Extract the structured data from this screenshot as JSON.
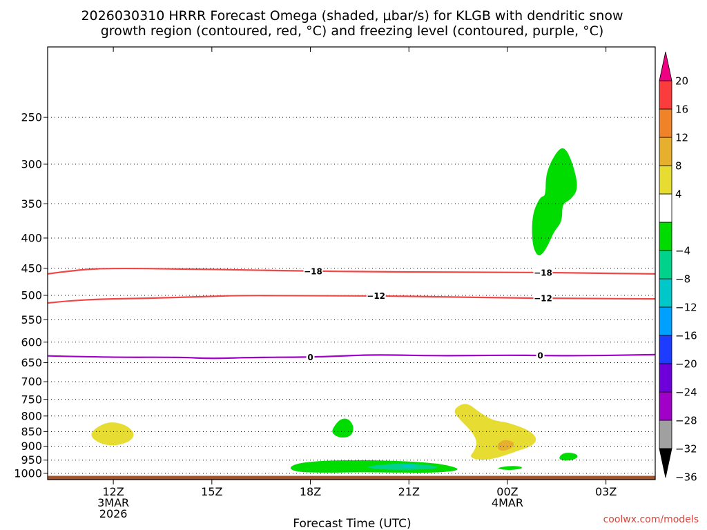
{
  "chart_data": {
    "type": "heatmap",
    "title": [
      "2026030310 HRRR Forecast Omega (shaded, μbar/s) for KLGB with dendritic snow",
      "growth region (contoured, red, °C) and freezing level (contoured, purple, °C)"
    ],
    "xlabel": "Forecast Time (UTC)",
    "ylabel": "",
    "credit": "coolwx.com/models",
    "x_range": [
      "2026-03-03T10:00Z",
      "2026-03-04T04:30Z"
    ],
    "x_ticks": [
      {
        "time": "2026-03-03T12:00Z",
        "lines": [
          "12Z",
          "3MAR",
          "2026"
        ]
      },
      {
        "time": "2026-03-03T15:00Z",
        "lines": [
          "15Z"
        ]
      },
      {
        "time": "2026-03-03T18:00Z",
        "lines": [
          "18Z"
        ]
      },
      {
        "time": "2026-03-03T21:00Z",
        "lines": [
          "21Z"
        ]
      },
      {
        "time": "2026-03-04T00:00Z",
        "lines": [
          "00Z",
          "4MAR"
        ]
      },
      {
        "time": "2026-03-04T03:00Z",
        "lines": [
          "03Z"
        ]
      }
    ],
    "y_axis": {
      "units": "hPa",
      "scale": "log-pressure",
      "range": [
        1025,
        190
      ],
      "ticks": [
        250,
        300,
        350,
        400,
        450,
        500,
        550,
        600,
        650,
        700,
        750,
        800,
        850,
        900,
        950,
        1000
      ]
    },
    "colorbar": {
      "ticks": [
        "20",
        "16",
        "12",
        "8",
        "4",
        "−4",
        "−8",
        "−12",
        "−16",
        "−20",
        "−24",
        "−28",
        "−32",
        "−36"
      ],
      "bins": [
        {
          "range": "<-36",
          "color": "#000000"
        },
        {
          "range": "-36 to -32",
          "color": "#a0a0a0"
        },
        {
          "range": "-32 to -28",
          "color": "#a000c8"
        },
        {
          "range": "-28 to -24",
          "color": "#6e00dc"
        },
        {
          "range": "-24 to -20",
          "color": "#1e3cff"
        },
        {
          "range": "-20 to -16",
          "color": "#00a0ff"
        },
        {
          "range": "-16 to -12",
          "color": "#00c8c8"
        },
        {
          "range": "-12 to -8",
          "color": "#00d28c"
        },
        {
          "range": "-8 to -4",
          "color": "#00dc00"
        },
        {
          "range": "-4 to 4",
          "color": "#ffffff"
        },
        {
          "range": "4 to 8",
          "color": "#e6dc32"
        },
        {
          "range": "8 to 12",
          "color": "#e6af2d"
        },
        {
          "range": "12 to 16",
          "color": "#f08228"
        },
        {
          "range": "16 to 20",
          "color": "#fa3c3c"
        },
        {
          "range": ">20",
          "color": "#f00082"
        }
      ]
    },
    "omega_regions": [
      {
        "value_range": "-8 to -4",
        "color": "#00dc00",
        "points": [
          [
            "2026-03-04T00:55Z",
            430
          ],
          [
            "2026-03-04T00:45Z",
            410
          ],
          [
            "2026-03-04T00:45Z",
            365
          ],
          [
            "2026-03-04T01:00Z",
            340
          ],
          [
            "2026-03-04T01:10Z",
            340
          ],
          [
            "2026-03-04T01:10Z",
            310
          ],
          [
            "2026-03-04T01:30Z",
            285
          ],
          [
            "2026-03-04T01:45Z",
            280
          ],
          [
            "2026-03-04T02:00Z",
            300
          ],
          [
            "2026-03-04T02:10Z",
            330
          ],
          [
            "2026-03-04T01:55Z",
            345
          ],
          [
            "2026-03-04T01:40Z",
            350
          ],
          [
            "2026-03-04T01:40Z",
            375
          ],
          [
            "2026-03-04T01:25Z",
            390
          ],
          [
            "2026-03-04T01:15Z",
            410
          ],
          [
            "2026-03-04T01:05Z",
            425
          ]
        ]
      },
      {
        "value_range": "4 to 8",
        "color": "#e6dc32",
        "points": [
          [
            "2026-03-03T11:20Z",
            850
          ],
          [
            "2026-03-03T11:40Z",
            825
          ],
          [
            "2026-03-03T12:00Z",
            818
          ],
          [
            "2026-03-03T12:25Z",
            830
          ],
          [
            "2026-03-03T12:40Z",
            858
          ],
          [
            "2026-03-03T12:30Z",
            885
          ],
          [
            "2026-03-03T12:00Z",
            900
          ],
          [
            "2026-03-03T11:35Z",
            890
          ],
          [
            "2026-03-03T11:20Z",
            870
          ]
        ]
      },
      {
        "value_range": "-8 to -4",
        "color": "#00dc00",
        "points": [
          [
            "2026-03-03T18:40Z",
            840
          ],
          [
            "2026-03-03T18:55Z",
            808
          ],
          [
            "2026-03-03T19:10Z",
            808
          ],
          [
            "2026-03-03T19:20Z",
            835
          ],
          [
            "2026-03-03T19:15Z",
            866
          ],
          [
            "2026-03-03T18:55Z",
            872
          ],
          [
            "2026-03-03T18:40Z",
            858
          ]
        ]
      },
      {
        "value_range": "4 to 8",
        "color": "#e6dc32",
        "points": [
          [
            "2026-03-03T22:20Z",
            785
          ],
          [
            "2026-03-03T22:35Z",
            763
          ],
          [
            "2026-03-03T22:50Z",
            763
          ],
          [
            "2026-03-03T23:10Z",
            790
          ],
          [
            "2026-03-03T23:35Z",
            815
          ],
          [
            "2026-03-04T00:00Z",
            820
          ],
          [
            "2026-03-04T00:40Z",
            845
          ],
          [
            "2026-03-04T00:55Z",
            875
          ],
          [
            "2026-03-04T00:45Z",
            900
          ],
          [
            "2026-03-04T00:20Z",
            915
          ],
          [
            "2026-03-04T00:00Z",
            930
          ],
          [
            "2026-03-03T23:35Z",
            945
          ],
          [
            "2026-03-03T23:10Z",
            950
          ],
          [
            "2026-03-03T22:50Z",
            940
          ],
          [
            "2026-03-03T23:00Z",
            915
          ],
          [
            "2026-03-03T23:05Z",
            885
          ],
          [
            "2026-03-03T22:55Z",
            850
          ],
          [
            "2026-03-03T22:35Z",
            815
          ]
        ]
      },
      {
        "value_range": "8 to 12",
        "color": "#e6af2d",
        "points": [
          [
            "2026-03-03T23:40Z",
            895
          ],
          [
            "2026-03-03T23:55Z",
            875
          ],
          [
            "2026-03-04T00:15Z",
            888
          ],
          [
            "2026-03-04T00:05Z",
            912
          ],
          [
            "2026-03-03T23:45Z",
            918
          ]
        ]
      },
      {
        "value_range": "-8 to -4",
        "color": "#00dc00",
        "points": [
          [
            "2026-03-03T17:20Z",
            980
          ],
          [
            "2026-03-03T17:35Z",
            962
          ],
          [
            "2026-03-03T18:20Z",
            952
          ],
          [
            "2026-03-03T19:30Z",
            950
          ],
          [
            "2026-03-03T20:30Z",
            952
          ],
          [
            "2026-03-03T21:30Z",
            958
          ],
          [
            "2026-03-03T22:10Z",
            968
          ],
          [
            "2026-03-03T22:35Z",
            985
          ],
          [
            "2026-03-03T22:10Z",
            995
          ],
          [
            "2026-03-03T21:30Z",
            998
          ],
          [
            "2026-03-03T20:30Z",
            997
          ],
          [
            "2026-03-03T19:30Z",
            996
          ],
          [
            "2026-03-03T18:20Z",
            998
          ],
          [
            "2026-03-03T17:35Z",
            995
          ]
        ]
      },
      {
        "value_range": "-12 to -8",
        "color": "#00d28c",
        "points": [
          [
            "2026-03-03T19:40Z",
            975
          ],
          [
            "2026-03-03T20:10Z",
            966
          ],
          [
            "2026-03-03T20:50Z",
            962
          ],
          [
            "2026-03-03T21:30Z",
            966
          ],
          [
            "2026-03-03T22:00Z",
            978
          ],
          [
            "2026-03-03T21:30Z",
            985
          ],
          [
            "2026-03-03T20:40Z",
            987
          ],
          [
            "2026-03-03T20:00Z",
            984
          ]
        ]
      },
      {
        "value_range": "-16 to -12",
        "color": "#00c8c8",
        "points": [
          [
            "2026-03-03T20:40Z",
            972
          ],
          [
            "2026-03-03T21:00Z",
            966
          ],
          [
            "2026-03-03T21:20Z",
            972
          ],
          [
            "2026-03-03T21:00Z",
            978
          ]
        ]
      },
      {
        "value_range": "-8 to -4",
        "color": "#00dc00",
        "points": [
          [
            "2026-03-03T23:40Z",
            980
          ],
          [
            "2026-03-04T00:00Z",
            972
          ],
          [
            "2026-03-04T00:20Z",
            972
          ],
          [
            "2026-03-04T00:30Z",
            980
          ],
          [
            "2026-03-04T00:10Z",
            988
          ],
          [
            "2026-03-03T23:50Z",
            986
          ]
        ]
      },
      {
        "value_range": "-8 to -4",
        "color": "#00dc00",
        "points": [
          [
            "2026-03-04T01:35Z",
            935
          ],
          [
            "2026-03-04T01:45Z",
            922
          ],
          [
            "2026-03-04T02:05Z",
            925
          ],
          [
            "2026-03-04T02:10Z",
            940
          ],
          [
            "2026-03-04T01:55Z",
            952
          ],
          [
            "2026-03-04T01:35Z",
            950
          ]
        ]
      }
    ],
    "contours": [
      {
        "value": -18,
        "label": "−18",
        "color": "#f04646",
        "points": [
          [
            "2026-03-03T10:00Z",
            460
          ],
          [
            "2026-03-03T11:00Z",
            452
          ],
          [
            "2026-03-03T12:00Z",
            450
          ],
          [
            "2026-03-03T14:00Z",
            451
          ],
          [
            "2026-03-03T16:00Z",
            453
          ],
          [
            "2026-03-03T18:00Z",
            455
          ],
          [
            "2026-03-03T20:00Z",
            456
          ],
          [
            "2026-03-03T22:00Z",
            457
          ],
          [
            "2026-03-04T00:00Z",
            457
          ],
          [
            "2026-03-04T02:00Z",
            458
          ],
          [
            "2026-03-04T04:30Z",
            460
          ]
        ],
        "label_times": [
          "2026-03-03T18:05Z",
          "2026-03-04T01:05Z"
        ]
      },
      {
        "value": -12,
        "label": "−12",
        "color": "#f04646",
        "points": [
          [
            "2026-03-03T10:00Z",
            515
          ],
          [
            "2026-03-03T11:00Z",
            508
          ],
          [
            "2026-03-03T13:00Z",
            506
          ],
          [
            "2026-03-03T15:00Z",
            502
          ],
          [
            "2026-03-03T16:00Z",
            500
          ],
          [
            "2026-03-03T18:00Z",
            501
          ],
          [
            "2026-03-03T20:00Z",
            501
          ],
          [
            "2026-03-03T22:00Z",
            503
          ],
          [
            "2026-03-04T00:00Z",
            505
          ],
          [
            "2026-03-04T02:00Z",
            506
          ],
          [
            "2026-03-04T04:30Z",
            507
          ]
        ],
        "label_times": [
          "2026-03-03T20:00Z",
          "2026-03-04T01:05Z"
        ]
      },
      {
        "value": 0,
        "label": "0",
        "color": "#a000c8",
        "points": [
          [
            "2026-03-03T10:00Z",
            633
          ],
          [
            "2026-03-03T12:00Z",
            637
          ],
          [
            "2026-03-03T14:00Z",
            636
          ],
          [
            "2026-03-03T15:00Z",
            640
          ],
          [
            "2026-03-03T16:00Z",
            637
          ],
          [
            "2026-03-03T18:00Z",
            636
          ],
          [
            "2026-03-03T19:00Z",
            633
          ],
          [
            "2026-03-03T20:00Z",
            630
          ],
          [
            "2026-03-03T22:00Z",
            633
          ],
          [
            "2026-03-04T00:00Z",
            631
          ],
          [
            "2026-03-04T02:00Z",
            633
          ],
          [
            "2026-03-04T04:30Z",
            630
          ]
        ],
        "label_times": [
          "2026-03-03T18:00Z",
          "2026-03-04T01:00Z"
        ]
      }
    ],
    "terrain": {
      "color": "#a0522d",
      "top_hPa": 1010
    },
    "grid": true
  }
}
